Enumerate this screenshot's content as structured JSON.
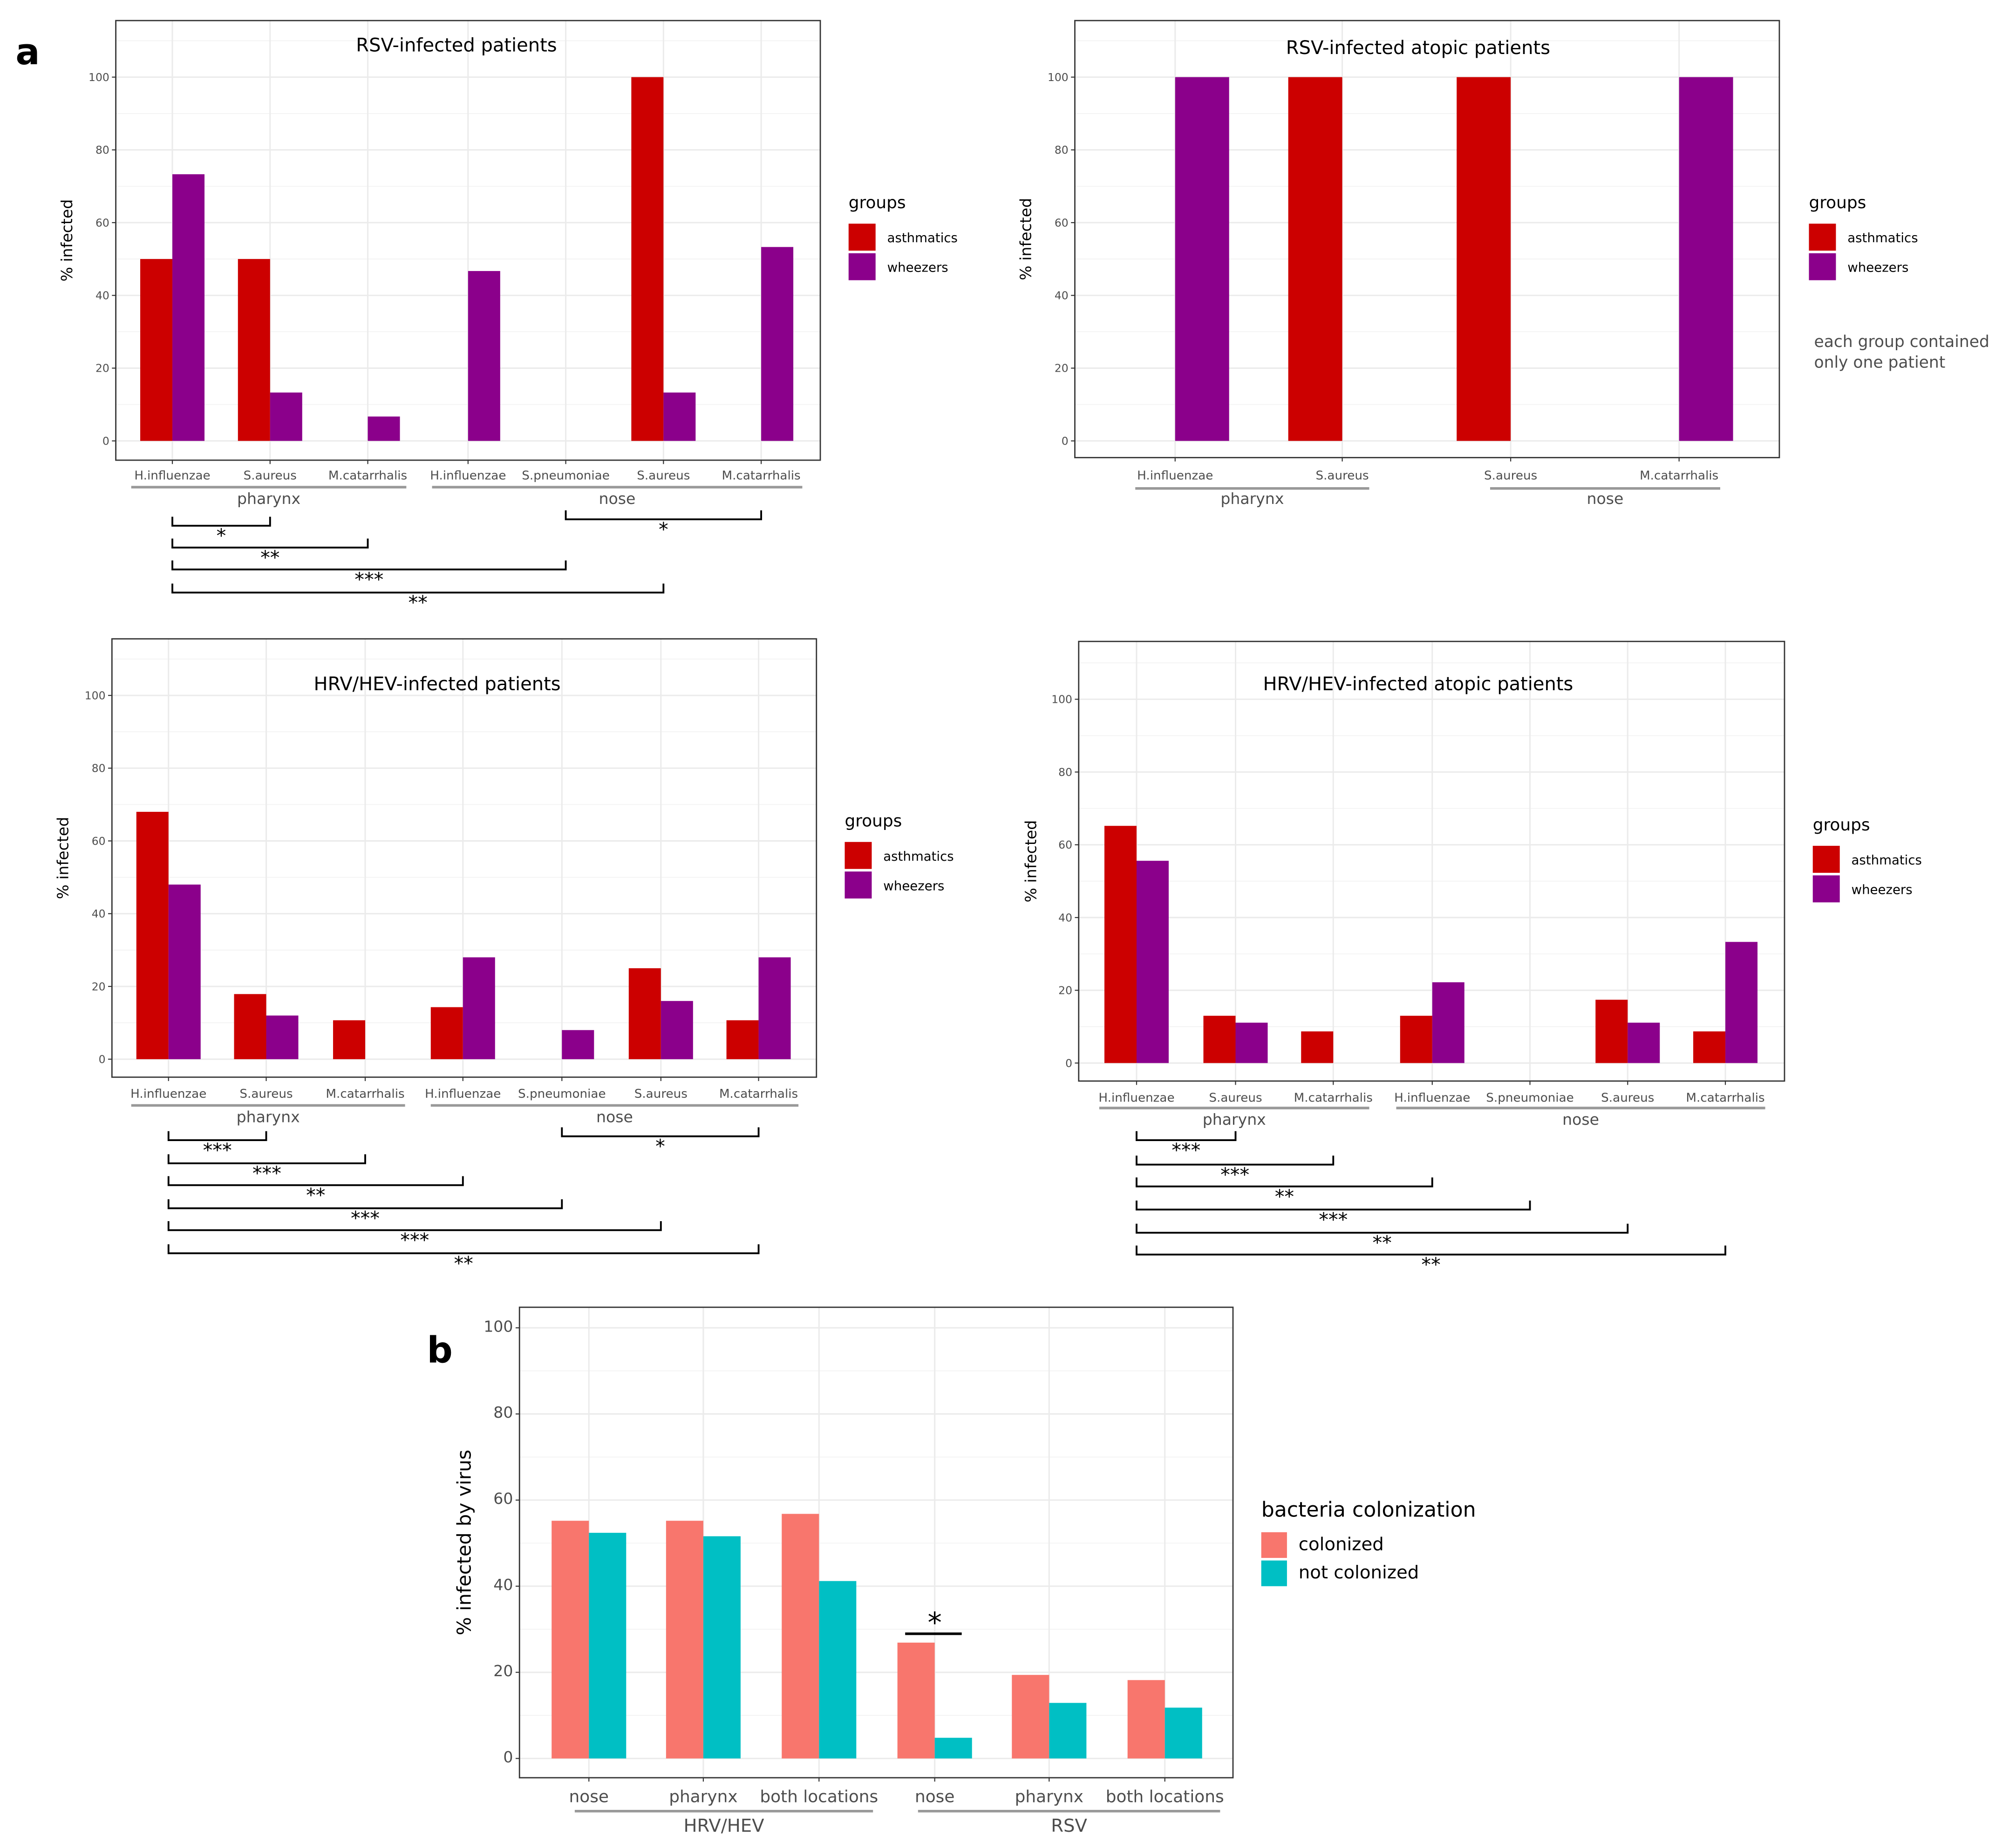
{
  "figure": {
    "label_a": "a",
    "label_b": "b"
  },
  "chart_data": [
    {
      "type": "bar",
      "title": "RSV-infected patients",
      "ylabel": "% infected",
      "ylim": [
        0,
        110
      ],
      "yticks": [
        "0",
        "20",
        "40",
        "60",
        "80",
        "100"
      ],
      "categories": [
        "H.influenzae",
        "S.aureus",
        "M.catarrhalis",
        "H.influenzae",
        "S.pneumoniae",
        "S.aureus",
        "M.catarrhalis"
      ],
      "groups": [
        {
          "name": "pharynx",
          "span": [
            0,
            2
          ]
        },
        {
          "name": "nose",
          "span": [
            3,
            6
          ]
        }
      ],
      "legend_title": "groups",
      "series": [
        {
          "name": "asthmatics",
          "color": "#cc0000",
          "values": [
            50,
            50,
            0,
            0,
            0,
            100,
            0
          ]
        },
        {
          "name": "wheezers",
          "color": "#8b008b",
          "values": [
            73.3,
            13.3,
            6.7,
            46.7,
            0,
            13.3,
            53.3
          ]
        }
      ],
      "significance": [
        {
          "from": 0,
          "to": 1,
          "label": "*"
        },
        {
          "from": 0,
          "to": 2,
          "label": "**"
        },
        {
          "from": 0,
          "to": 4,
          "label": "***"
        },
        {
          "from": 0,
          "to": 5,
          "label": "**"
        },
        {
          "from": 4,
          "to": 6,
          "label": "*"
        }
      ]
    },
    {
      "type": "bar",
      "title": "RSV-infected atopic patients",
      "ylabel": "% infected",
      "ylim": [
        0,
        110
      ],
      "yticks": [
        "0",
        "20",
        "40",
        "60",
        "80",
        "100"
      ],
      "categories": [
        "H.influenzae",
        "S.aureus",
        "S.aureus",
        "M.catarrhalis"
      ],
      "groups": [
        {
          "name": "pharynx",
          "span": [
            0,
            1
          ]
        },
        {
          "name": "nose",
          "span": [
            2,
            3
          ]
        }
      ],
      "legend_title": "groups",
      "series": [
        {
          "name": "asthmatics",
          "color": "#cc0000",
          "values": [
            0,
            100,
            100,
            0
          ]
        },
        {
          "name": "wheezers",
          "color": "#8b008b",
          "values": [
            100,
            0,
            0,
            100
          ]
        }
      ],
      "note": [
        "each group contained",
        "only one patient"
      ],
      "significance": []
    },
    {
      "type": "bar",
      "title": "HRV/HEV-infected patients",
      "ylabel": "% infected",
      "ylim": [
        0,
        110
      ],
      "yticks": [
        "0",
        "20",
        "40",
        "60",
        "80",
        "100"
      ],
      "categories": [
        "H.influenzae",
        "S.aureus",
        "M.catarrhalis",
        "H.influenzae",
        "S.pneumoniae",
        "S.aureus",
        "M.catarrhalis"
      ],
      "groups": [
        {
          "name": "pharynx",
          "span": [
            0,
            2
          ]
        },
        {
          "name": "nose",
          "span": [
            3,
            6
          ]
        }
      ],
      "legend_title": "groups",
      "series": [
        {
          "name": "asthmatics",
          "color": "#cc0000",
          "values": [
            68,
            17.9,
            10.7,
            14.3,
            0,
            25,
            10.7
          ]
        },
        {
          "name": "wheezers",
          "color": "#8b008b",
          "values": [
            48,
            12,
            0,
            28,
            8,
            16,
            28
          ]
        }
      ],
      "significance": [
        {
          "from": 0,
          "to": 1,
          "label": "***"
        },
        {
          "from": 0,
          "to": 2,
          "label": "***"
        },
        {
          "from": 0,
          "to": 3,
          "label": "**"
        },
        {
          "from": 0,
          "to": 4,
          "label": "***"
        },
        {
          "from": 0,
          "to": 5,
          "label": "***"
        },
        {
          "from": 0,
          "to": 6,
          "label": "**"
        },
        {
          "from": 4,
          "to": 6,
          "label": "*"
        }
      ]
    },
    {
      "type": "bar",
      "title": "HRV/HEV-infected atopic patients",
      "ylabel": "% infected",
      "ylim": [
        0,
        110
      ],
      "yticks": [
        "0",
        "20",
        "40",
        "60",
        "80",
        "100"
      ],
      "categories": [
        "H.influenzae",
        "S.aureus",
        "M.catarrhalis",
        "H.influenzae",
        "S.pneumoniae",
        "S.aureus",
        "M.catarrhalis"
      ],
      "groups": [
        {
          "name": "pharynx",
          "span": [
            0,
            2
          ]
        },
        {
          "name": "nose",
          "span": [
            3,
            6
          ]
        }
      ],
      "legend_title": "groups",
      "series": [
        {
          "name": "asthmatics",
          "color": "#cc0000",
          "values": [
            65.2,
            13,
            8.7,
            13,
            0,
            17.4,
            8.7
          ]
        },
        {
          "name": "wheezers",
          "color": "#8b008b",
          "values": [
            55.6,
            11.1,
            0,
            22.2,
            0,
            11.1,
            33.3
          ]
        }
      ],
      "significance": [
        {
          "from": 0,
          "to": 1,
          "label": "***"
        },
        {
          "from": 0,
          "to": 2,
          "label": "***"
        },
        {
          "from": 0,
          "to": 3,
          "label": "**"
        },
        {
          "from": 0,
          "to": 4,
          "label": "***"
        },
        {
          "from": 0,
          "to": 5,
          "label": "**"
        },
        {
          "from": 0,
          "to": 6,
          "label": "**"
        }
      ]
    },
    {
      "type": "bar",
      "title": "",
      "ylabel": "% infected by virus",
      "ylim": [
        0,
        105
      ],
      "yticks": [
        "0",
        "20",
        "40",
        "60",
        "80",
        "100"
      ],
      "categories": [
        "nose",
        "pharynx",
        "both locations",
        "nose",
        "pharynx",
        "both locations"
      ],
      "groups": [
        {
          "name": "HRV/HEV",
          "span": [
            0,
            2
          ]
        },
        {
          "name": "RSV",
          "span": [
            3,
            5
          ]
        }
      ],
      "legend_title": "bacteria colonization",
      "series": [
        {
          "name": "colonized",
          "color": "#f8766d",
          "values": [
            55.2,
            55.2,
            56.8,
            26.9,
            19.4,
            18.2
          ]
        },
        {
          "name": "not colonized",
          "color": "#00bfc4",
          "values": [
            52.4,
            51.6,
            41.2,
            4.8,
            12.9,
            11.8
          ]
        }
      ],
      "significance": [
        {
          "from": 3,
          "to": 3,
          "label": "*"
        }
      ]
    }
  ]
}
